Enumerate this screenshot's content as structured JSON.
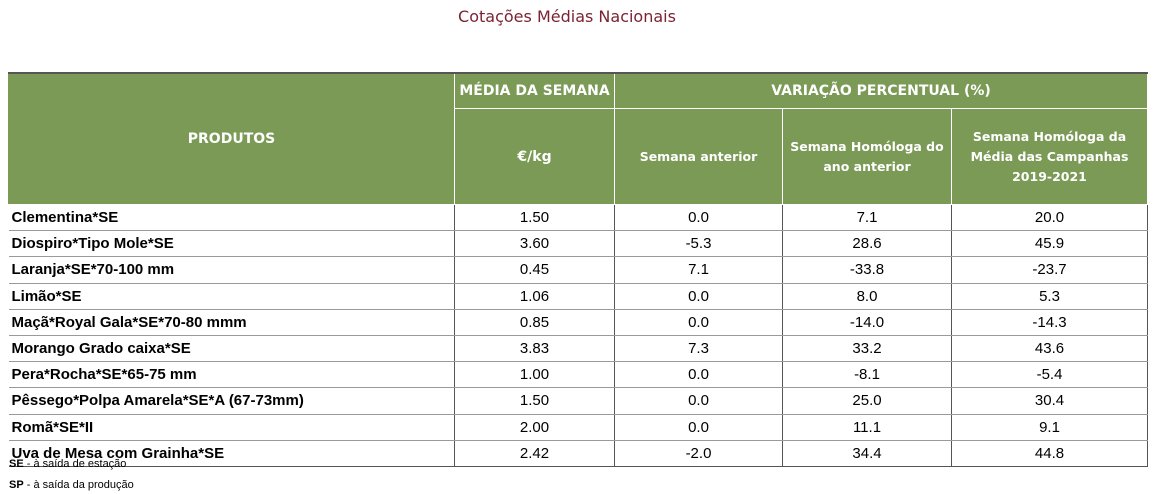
{
  "title": "Cotações Médias Nacionais",
  "headers": {
    "produtos": "PRODUTOS",
    "media": "MÉDIA DA SEMANA",
    "unit": "€/kg",
    "variacao": "VARIAÇÃO PERCENTUAL (%)",
    "semana_anterior": "Semana anterior",
    "semana_homologa": "Semana Homóloga do ano anterior",
    "media_campanhas": "Semana Homóloga da Média das Campanhas 2019-2021"
  },
  "rows": [
    {
      "produto": "Clementina*SE",
      "media": "1.50",
      "anterior": "0.0",
      "homologa": "7.1",
      "campanhas": "20.0"
    },
    {
      "produto": "Diospiro*Tipo Mole*SE",
      "media": "3.60",
      "anterior": "-5.3",
      "homologa": "28.6",
      "campanhas": "45.9"
    },
    {
      "produto": "Laranja*SE*70-100 mm",
      "media": "0.45",
      "anterior": "7.1",
      "homologa": "-33.8",
      "campanhas": "-23.7"
    },
    {
      "produto": "Limão*SE",
      "media": "1.06",
      "anterior": "0.0",
      "homologa": "8.0",
      "campanhas": "5.3"
    },
    {
      "produto": "Maçã*Royal Gala*SE*70-80 mmm",
      "media": "0.85",
      "anterior": "0.0",
      "homologa": "-14.0",
      "campanhas": "-14.3"
    },
    {
      "produto": "Morango Grado caixa*SE",
      "media": "3.83",
      "anterior": "7.3",
      "homologa": "33.2",
      "campanhas": "43.6"
    },
    {
      "produto": "Pera*Rocha*SE*65-75 mm",
      "media": "1.00",
      "anterior": "0.0",
      "homologa": "-8.1",
      "campanhas": "-5.4"
    },
    {
      "produto": "Pêssego*Polpa Amarela*SE*A (67-73mm)",
      "media": "1.50",
      "anterior": "0.0",
      "homologa": "25.0",
      "campanhas": "30.4"
    },
    {
      "produto": "Romã*SE*II",
      "media": "2.00",
      "anterior": "0.0",
      "homologa": "11.1",
      "campanhas": "9.1"
    },
    {
      "produto": "Uva de Mesa com Grainha*SE",
      "media": "2.42",
      "anterior": "-2.0",
      "homologa": "34.4",
      "campanhas": "44.8"
    }
  ],
  "footnotes": [
    {
      "abbr": "SE",
      "text": " - à saída de estação"
    },
    {
      "abbr": "SP",
      "text": " - à saída da produção"
    }
  ]
}
